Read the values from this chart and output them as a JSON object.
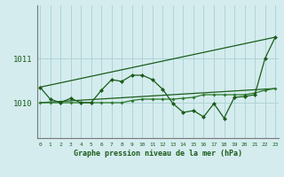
{
  "title": "Graphe pression niveau de la mer (hPa)",
  "bg_color": "#d4ecee",
  "grid_color": "#aed4d6",
  "line_color_dark": "#1a5c1a",
  "line_color_mid": "#2d7a2d",
  "x_labels": [
    "0",
    "1",
    "2",
    "3",
    "4",
    "5",
    "6",
    "7",
    "8",
    "9",
    "10",
    "11",
    "12",
    "13",
    "14",
    "15",
    "16",
    "17",
    "18",
    "19",
    "20",
    "21",
    "22",
    "23"
  ],
  "yticks": [
    1010,
    1011
  ],
  "ylim": [
    1009.2,
    1012.2
  ],
  "xlim": [
    -0.3,
    23.3
  ],
  "series1": [
    1010.35,
    1010.08,
    1010.0,
    1010.1,
    1010.0,
    1010.0,
    1010.28,
    1010.52,
    1010.48,
    1010.62,
    1010.62,
    1010.52,
    1010.3,
    1009.98,
    1009.78,
    1009.82,
    1009.68,
    1009.98,
    1009.65,
    1010.12,
    1010.14,
    1010.18,
    1011.0,
    1011.48
  ],
  "series2": [
    1010.0,
    1010.0,
    1010.0,
    1010.0,
    1010.0,
    1010.0,
    1010.0,
    1010.0,
    1010.0,
    1010.05,
    1010.08,
    1010.08,
    1010.08,
    1010.08,
    1010.1,
    1010.12,
    1010.18,
    1010.18,
    1010.18,
    1010.18,
    1010.18,
    1010.22,
    1010.28,
    1010.32
  ],
  "series3_x": [
    0,
    23
  ],
  "series3_y": [
    1010.35,
    1011.48
  ],
  "series4_x": [
    0,
    23
  ],
  "series4_y": [
    1010.0,
    1010.32
  ]
}
